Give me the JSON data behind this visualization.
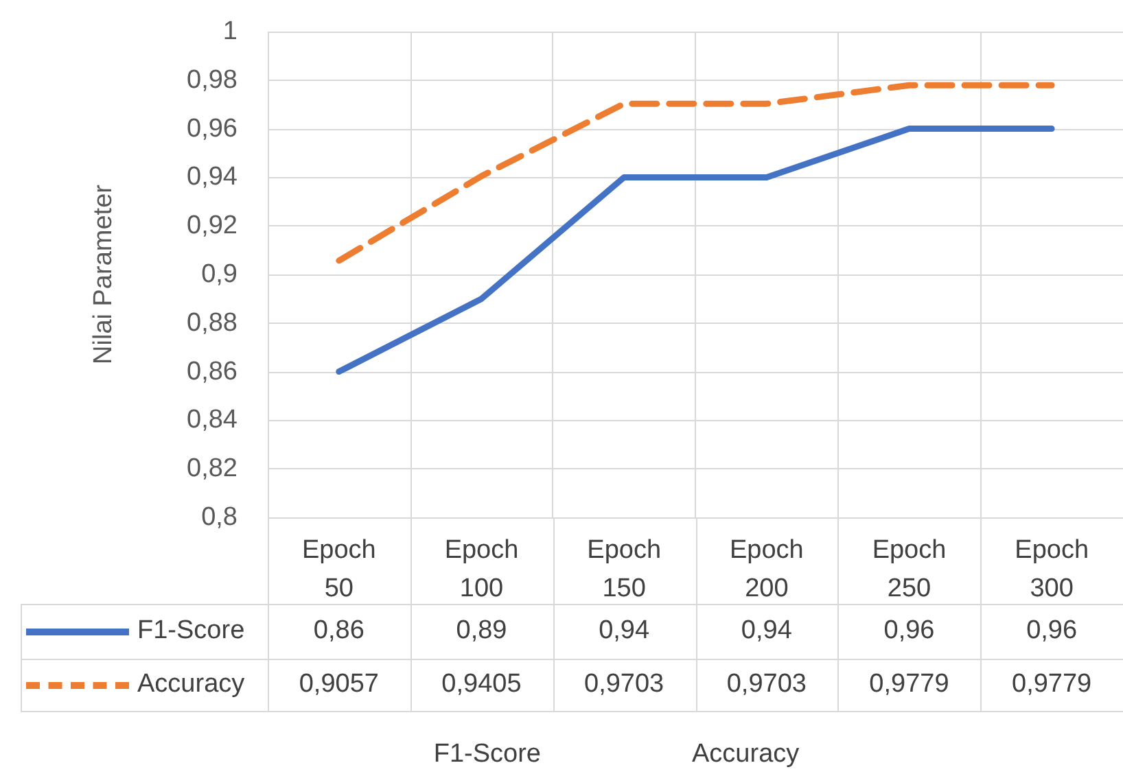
{
  "chart_data": {
    "type": "line",
    "ylabel": "Nilai Parameter",
    "categories": [
      "Epoch 50",
      "Epoch 100",
      "Epoch 150",
      "Epoch 200",
      "Epoch 250",
      "Epoch 300"
    ],
    "series": [
      {
        "name": "F1-Score",
        "color": "#4472c4",
        "line_style": "solid",
        "values": [
          0.86,
          0.89,
          0.94,
          0.94,
          0.96,
          0.96
        ],
        "value_labels": [
          "0,86",
          "0,89",
          "0,94",
          "0,94",
          "0,96",
          "0,96"
        ]
      },
      {
        "name": "Accuracy",
        "color": "#ed7d31",
        "line_style": "dashed",
        "values": [
          0.9057,
          0.9405,
          0.9703,
          0.9703,
          0.9779,
          0.9779
        ],
        "value_labels": [
          "0,9057",
          "0,9405",
          "0,9703",
          "0,9703",
          "0,9779",
          "0,9779"
        ]
      }
    ],
    "ylim": [
      0.8,
      1
    ],
    "yticks": [
      {
        "value": 0.8,
        "label": "0,8"
      },
      {
        "value": 0.82,
        "label": "0,82"
      },
      {
        "value": 0.84,
        "label": "0,84"
      },
      {
        "value": 0.86,
        "label": "0,86"
      },
      {
        "value": 0.88,
        "label": "0,88"
      },
      {
        "value": 0.9,
        "label": "0,9"
      },
      {
        "value": 0.92,
        "label": "0,92"
      },
      {
        "value": 0.94,
        "label": "0,94"
      },
      {
        "value": 0.96,
        "label": "0,96"
      },
      {
        "value": 0.98,
        "label": "0,98"
      },
      {
        "value": 1,
        "label": "1"
      }
    ],
    "grid": true,
    "legend": "bottom",
    "marker": "none"
  }
}
